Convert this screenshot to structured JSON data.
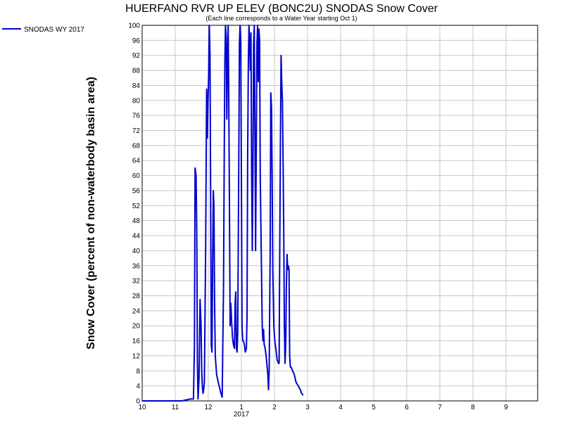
{
  "chart_data": {
    "type": "line",
    "title": "HUERFANO RVR UP ELEV (BONC2U) SNODAS Snow Cover",
    "subtitle": "(Each line corresponds to a Water Year starting Oct 1)",
    "ylabel": "Snow Cover (percent of non-waterbody basin area)",
    "xlabel": "",
    "ylim": [
      0,
      100
    ],
    "y_ticks": [
      0,
      4,
      8,
      12,
      16,
      20,
      24,
      28,
      32,
      36,
      40,
      44,
      48,
      52,
      56,
      60,
      64,
      68,
      72,
      76,
      80,
      84,
      88,
      92,
      96,
      100
    ],
    "x_ticks": [
      {
        "month": 10,
        "label": "10"
      },
      {
        "month": 11,
        "label": "11"
      },
      {
        "month": 12,
        "label": "12"
      },
      {
        "month": 13,
        "label": "1"
      },
      {
        "month": 14,
        "label": "2"
      },
      {
        "month": 15,
        "label": "3"
      },
      {
        "month": 16,
        "label": "4"
      },
      {
        "month": 17,
        "label": "5"
      },
      {
        "month": 18,
        "label": "6"
      },
      {
        "month": 19,
        "label": "7"
      },
      {
        "month": 20,
        "label": "8"
      },
      {
        "month": 21,
        "label": "9"
      }
    ],
    "year_label": "2017",
    "grid": true,
    "legend_position": "top-left",
    "series": [
      {
        "name": "SNODAS WY 2017",
        "color": "#0000cc",
        "points": [
          [
            10.0,
            0
          ],
          [
            11.2,
            0
          ],
          [
            11.45,
            0.5
          ],
          [
            11.55,
            0.5
          ],
          [
            11.58,
            15
          ],
          [
            11.6,
            62
          ],
          [
            11.63,
            60
          ],
          [
            11.65,
            45
          ],
          [
            11.67,
            10
          ],
          [
            11.69,
            0.5
          ],
          [
            11.72,
            6
          ],
          [
            11.75,
            27
          ],
          [
            11.78,
            20
          ],
          [
            11.8,
            8
          ],
          [
            11.82,
            4
          ],
          [
            11.84,
            2
          ],
          [
            11.86,
            3
          ],
          [
            11.88,
            5
          ],
          [
            11.92,
            40
          ],
          [
            11.95,
            83
          ],
          [
            11.97,
            70
          ],
          [
            11.99,
            79
          ],
          [
            12.01,
            87
          ],
          [
            12.03,
            100
          ],
          [
            12.05,
            92
          ],
          [
            12.07,
            55
          ],
          [
            12.09,
            15
          ],
          [
            12.11,
            13
          ],
          [
            12.13,
            35
          ],
          [
            12.15,
            56
          ],
          [
            12.17,
            52
          ],
          [
            12.19,
            27
          ],
          [
            12.21,
            12
          ],
          [
            12.25,
            7
          ],
          [
            12.3,
            5
          ],
          [
            12.38,
            2
          ],
          [
            12.42,
            1
          ],
          [
            12.46,
            30
          ],
          [
            12.48,
            64
          ],
          [
            12.5,
            90
          ],
          [
            12.52,
            100
          ],
          [
            12.54,
            97
          ],
          [
            12.56,
            75
          ],
          [
            12.58,
            92
          ],
          [
            12.6,
            100
          ],
          [
            12.62,
            80
          ],
          [
            12.64,
            50
          ],
          [
            12.66,
            20
          ],
          [
            12.68,
            26
          ],
          [
            12.7,
            22
          ],
          [
            12.73,
            17
          ],
          [
            12.76,
            15
          ],
          [
            12.79,
            14
          ],
          [
            12.81,
            26
          ],
          [
            12.83,
            29
          ],
          [
            12.85,
            14
          ],
          [
            12.87,
            13
          ],
          [
            12.89,
            18
          ],
          [
            12.92,
            60
          ],
          [
            12.94,
            95
          ],
          [
            12.96,
            100
          ],
          [
            12.98,
            95
          ],
          [
            13.0,
            60
          ],
          [
            13.02,
            20
          ],
          [
            13.04,
            16
          ],
          [
            13.06,
            16
          ],
          [
            13.09,
            15
          ],
          [
            13.12,
            13
          ],
          [
            13.15,
            14
          ],
          [
            13.17,
            22
          ],
          [
            13.19,
            65
          ],
          [
            13.21,
            90
          ],
          [
            13.23,
            100
          ],
          [
            13.25,
            95
          ],
          [
            13.27,
            88
          ],
          [
            13.29,
            98
          ],
          [
            13.31,
            60
          ],
          [
            13.33,
            40
          ],
          [
            13.35,
            60
          ],
          [
            13.37,
            95
          ],
          [
            13.39,
            100
          ],
          [
            13.41,
            70
          ],
          [
            13.43,
            40
          ],
          [
            13.45,
            65
          ],
          [
            13.47,
            95
          ],
          [
            13.49,
            100
          ],
          [
            13.51,
            85
          ],
          [
            13.53,
            99
          ],
          [
            13.55,
            96
          ],
          [
            13.57,
            60
          ],
          [
            13.6,
            40
          ],
          [
            13.63,
            20
          ],
          [
            13.65,
            16
          ],
          [
            13.67,
            19
          ],
          [
            13.69,
            15
          ],
          [
            13.72,
            14
          ],
          [
            13.76,
            11
          ],
          [
            13.8,
            7
          ],
          [
            13.82,
            3
          ],
          [
            13.84,
            8
          ],
          [
            13.87,
            40
          ],
          [
            13.89,
            82
          ],
          [
            13.91,
            78
          ],
          [
            13.93,
            60
          ],
          [
            13.95,
            35
          ],
          [
            13.98,
            20
          ],
          [
            14.01,
            16
          ],
          [
            14.04,
            14
          ],
          [
            14.08,
            11
          ],
          [
            14.12,
            10
          ],
          [
            14.14,
            10
          ],
          [
            14.16,
            40
          ],
          [
            14.18,
            70
          ],
          [
            14.2,
            92
          ],
          [
            14.22,
            85
          ],
          [
            14.24,
            80
          ],
          [
            14.26,
            65
          ],
          [
            14.28,
            45
          ],
          [
            14.3,
            20
          ],
          [
            14.32,
            10
          ],
          [
            14.34,
            15
          ],
          [
            14.36,
            30
          ],
          [
            14.38,
            39
          ],
          [
            14.4,
            35
          ],
          [
            14.42,
            36
          ],
          [
            14.44,
            35
          ],
          [
            14.46,
            12
          ],
          [
            14.48,
            9
          ],
          [
            14.5,
            9
          ],
          [
            14.55,
            8
          ],
          [
            14.6,
            7
          ],
          [
            14.65,
            5
          ],
          [
            14.72,
            4
          ],
          [
            14.78,
            3
          ],
          [
            14.82,
            2
          ],
          [
            14.87,
            1.5
          ]
        ]
      }
    ]
  }
}
